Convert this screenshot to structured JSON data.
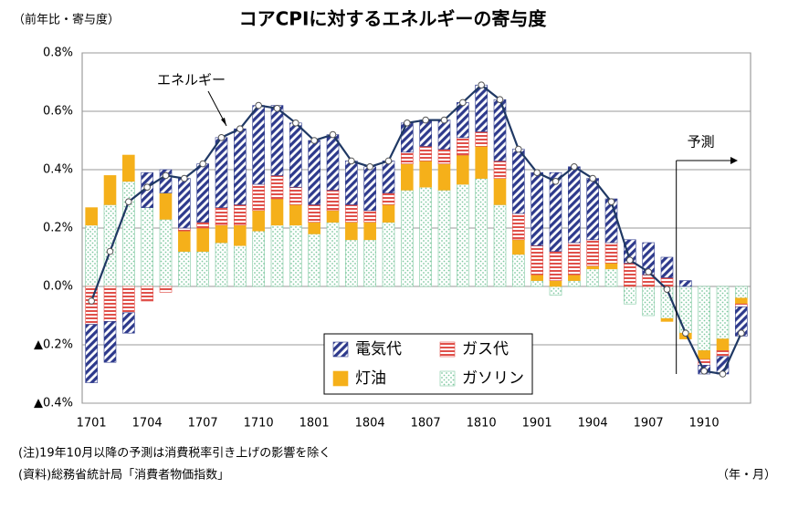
{
  "chart_data": {
    "type": "bar",
    "title": "コアCPIに対するエネルギーの寄与度",
    "y_axis_label": "（前年比・寄与度）",
    "x_axis_label": "（年・月）",
    "notes": [
      "(注)19年10月以降の予測は消費税率引き上げの影響を除く",
      "(資料)総務省統計局「消費者物価指数」"
    ],
    "forecast_label": "予測",
    "categories": [
      "1701",
      null,
      null,
      "1704",
      null,
      null,
      "1707",
      null,
      null,
      "1710",
      null,
      null,
      "1801",
      null,
      null,
      "1804",
      null,
      null,
      "1807",
      null,
      null,
      "1810",
      null,
      null,
      "1901",
      null,
      null,
      "1904",
      null,
      null,
      "1907",
      null,
      null,
      "1910",
      null,
      null
    ],
    "series": [
      {
        "name": "ガソリン",
        "color": "#7fc9a0",
        "values": [
          0.21,
          0.28,
          0.36,
          0.27,
          0.23,
          0.12,
          0.12,
          0.15,
          0.14,
          0.19,
          0.21,
          0.21,
          0.18,
          0.22,
          0.16,
          0.16,
          0.22,
          0.33,
          0.34,
          0.33,
          0.35,
          0.37,
          0.28,
          0.11,
          0.02,
          -0.03,
          0.02,
          0.06,
          0.06,
          -0.06,
          -0.1,
          -0.11,
          -0.16,
          -0.22,
          -0.18,
          -0.04
        ]
      },
      {
        "name": "灯油",
        "color": "#f5b01a",
        "values": [
          0.06,
          0.1,
          0.09,
          0,
          0.09,
          0.07,
          0.08,
          0.06,
          0.07,
          0.07,
          0.09,
          0.07,
          0.04,
          0.04,
          0.06,
          0.06,
          0.06,
          0.09,
          0.09,
          0.09,
          0.1,
          0.11,
          0.09,
          0.05,
          0.02,
          0.02,
          0.02,
          0.01,
          0.02,
          0,
          0,
          -0.01,
          -0.02,
          -0.03,
          -0.04,
          -0.02
        ]
      },
      {
        "name": "ガス代",
        "color": "#e0504a",
        "values": [
          -0.13,
          -0.12,
          -0.09,
          -0.05,
          -0.02,
          0.01,
          0.02,
          0.06,
          0.07,
          0.09,
          0.08,
          0.06,
          0.06,
          0.07,
          0.06,
          0.04,
          0.04,
          0.04,
          0.05,
          0.05,
          0.06,
          0.05,
          0.06,
          0.09,
          0.1,
          0.1,
          0.11,
          0.09,
          0.07,
          0.08,
          0.04,
          0.03,
          0,
          -0.02,
          -0.02,
          -0.01
        ]
      },
      {
        "name": "電気代",
        "color": "#2e3a8c",
        "values": [
          -0.2,
          -0.14,
          -0.07,
          0.12,
          0.08,
          0.17,
          0.2,
          0.24,
          0.26,
          0.27,
          0.24,
          0.22,
          0.22,
          0.19,
          0.15,
          0.15,
          0.11,
          0.1,
          0.09,
          0.1,
          0.12,
          0.16,
          0.21,
          0.22,
          0.25,
          0.27,
          0.26,
          0.21,
          0.15,
          0.08,
          0.11,
          0.07,
          0.02,
          -0.03,
          -0.06,
          -0.1
        ]
      }
    ],
    "line": {
      "name": "エネルギー",
      "color": "#1f3864",
      "values": [
        -0.05,
        0.12,
        0.29,
        0.34,
        0.38,
        0.37,
        0.42,
        0.51,
        0.54,
        0.62,
        0.61,
        0.56,
        0.5,
        0.52,
        0.43,
        0.41,
        0.43,
        0.56,
        0.57,
        0.57,
        0.63,
        0.69,
        0.64,
        0.47,
        0.39,
        0.36,
        0.41,
        0.37,
        0.29,
        0.09,
        0.05,
        -0.01,
        -0.16,
        -0.29,
        -0.3,
        -0.16
      ]
    },
    "ylim": [
      -0.4,
      0.8
    ],
    "yticks": [
      {
        "value": -0.4,
        "label": "▲0.4%"
      },
      {
        "value": -0.2,
        "label": "▲0.2%"
      },
      {
        "value": 0,
        "label": "0.0%"
      },
      {
        "value": 0.2,
        "label": "0.2%"
      },
      {
        "value": 0.4,
        "label": "0.4%"
      },
      {
        "value": 0.6,
        "label": "0.6%"
      },
      {
        "value": 0.8,
        "label": "0.8%"
      }
    ],
    "grid": true
  }
}
